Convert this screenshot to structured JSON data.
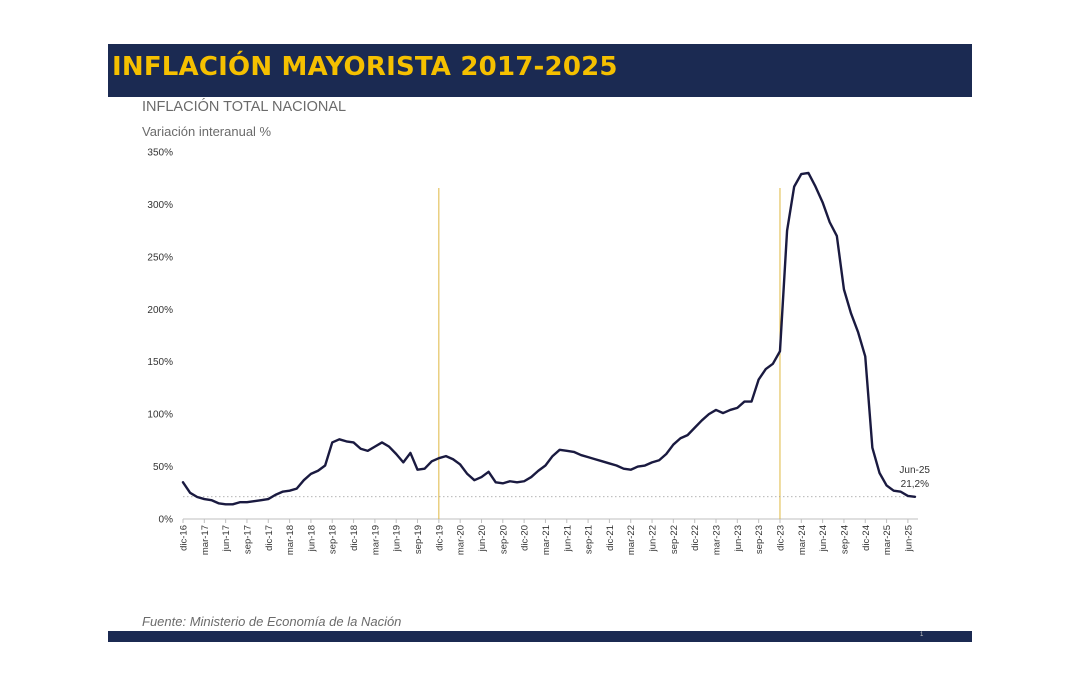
{
  "header": {
    "title": "INFLACIÓN MAYORISTA 2017-2025"
  },
  "chart_title": "INFLACIÓN TOTAL NACIONAL",
  "unit_label": "Variación interanual %",
  "source": "Fuente: Ministerio de Economía de la Nación",
  "page_number": "1",
  "colors": {
    "header_band": "#1b2a52",
    "title": "#f5c000",
    "line": "#1a1a40",
    "vertical_marker": "#e0b840",
    "reference_line": "#9a9a9a"
  },
  "chart_data": {
    "type": "line",
    "title": "INFLACIÓN TOTAL NACIONAL",
    "ylabel": "Variación interanual %",
    "ylim": [
      0,
      350
    ],
    "yticks": [
      "0%",
      "50%",
      "100%",
      "150%",
      "200%",
      "250%",
      "300%",
      "350%"
    ],
    "ytick_values": [
      0,
      50,
      100,
      150,
      200,
      250,
      300,
      350
    ],
    "xtick_labels": [
      "dic-16",
      "mar-17",
      "jun-17",
      "sep-17",
      "dic-17",
      "mar-18",
      "jun-18",
      "sep-18",
      "dic-18",
      "mar-19",
      "jun-19",
      "sep-19",
      "dic-19",
      "mar-20",
      "jun-20",
      "sep-20",
      "dic-20",
      "mar-21",
      "jun-21",
      "sep-21",
      "dic-21",
      "mar-22",
      "jun-22",
      "sep-22",
      "dic-22",
      "mar-23",
      "jun-23",
      "sep-23",
      "dic-23",
      "mar-24",
      "jun-24",
      "sep-24",
      "dic-24",
      "mar-25",
      "jun-25"
    ],
    "grid": false,
    "x_start": "dic-16",
    "x_end": "jun-25",
    "vertical_markers": [
      "dic-19",
      "dic-23"
    ],
    "reference_line_value": 21.2,
    "series": [
      {
        "values": [
          35,
          25,
          21,
          19,
          18,
          15,
          14,
          14,
          16,
          16,
          17,
          18,
          19,
          23,
          26,
          27,
          29,
          37,
          43,
          46,
          51,
          73,
          76,
          74,
          73,
          67,
          65,
          69,
          73,
          69,
          62,
          54,
          63,
          47,
          48,
          55,
          58,
          60,
          57,
          52,
          43,
          37,
          40,
          45,
          35,
          34,
          36,
          35,
          36,
          40,
          46,
          51,
          60,
          66,
          65,
          64,
          61,
          59,
          57,
          55,
          53,
          51,
          48,
          47,
          50,
          51,
          54,
          56,
          62,
          71,
          77,
          80,
          87,
          94,
          100,
          104,
          101,
          104,
          106,
          112,
          112,
          133,
          143,
          148,
          160,
          275,
          317,
          329,
          330,
          317,
          302,
          283,
          270,
          219,
          196,
          178,
          155,
          68,
          44,
          32,
          27,
          26,
          22,
          21.2
        ]
      }
    ],
    "annotations": [
      {
        "label": "Jun-25",
        "value": "21,2%"
      }
    ]
  }
}
